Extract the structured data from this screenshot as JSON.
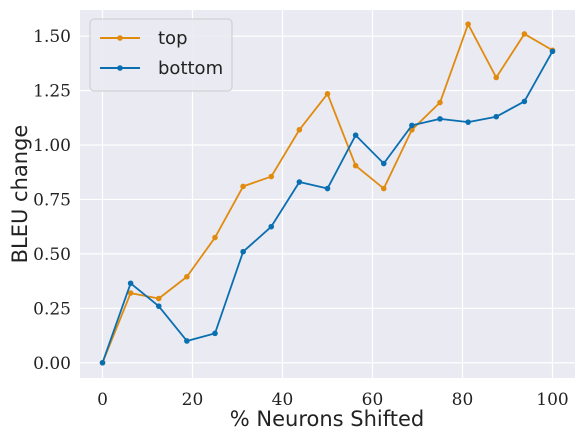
{
  "chart_data": {
    "type": "line",
    "title": "",
    "xlabel": "% Neurons Shifted",
    "ylabel": "BLEU change",
    "xlim": [
      -5,
      105
    ],
    "ylim": [
      -0.07,
      1.62
    ],
    "xticks": [
      0,
      20,
      40,
      60,
      80,
      100
    ],
    "xtick_labels": [
      "0",
      "20",
      "40",
      "60",
      "80",
      "100"
    ],
    "yticks": [
      0.0,
      0.25,
      0.5,
      0.75,
      1.0,
      1.25,
      1.5
    ],
    "ytick_labels": [
      "0.00",
      "0.25",
      "0.50",
      "0.75",
      "1.00",
      "1.25",
      "1.50"
    ],
    "grid": true,
    "legend_position": "top-left",
    "x": [
      0,
      6.25,
      12.5,
      18.75,
      25,
      31.25,
      37.5,
      43.75,
      50,
      56.25,
      62.5,
      68.75,
      75,
      81.25,
      87.5,
      93.75,
      100
    ],
    "series": [
      {
        "name": "top",
        "color": "#e18b0e",
        "values": [
          0.0,
          0.32,
          0.295,
          0.395,
          0.575,
          0.81,
          0.855,
          1.07,
          1.235,
          0.905,
          0.8,
          1.07,
          1.195,
          1.555,
          1.31,
          1.51,
          1.435
        ]
      },
      {
        "name": "bottom",
        "color": "#0a6fb0",
        "values": [
          0.0,
          0.365,
          0.26,
          0.1,
          0.135,
          0.51,
          0.625,
          0.83,
          0.8,
          1.045,
          0.915,
          1.09,
          1.12,
          1.105,
          1.13,
          1.2,
          1.43
        ]
      }
    ]
  },
  "colors": {
    "plot_background": "#eaeaf2",
    "grid": "#ffffff"
  }
}
